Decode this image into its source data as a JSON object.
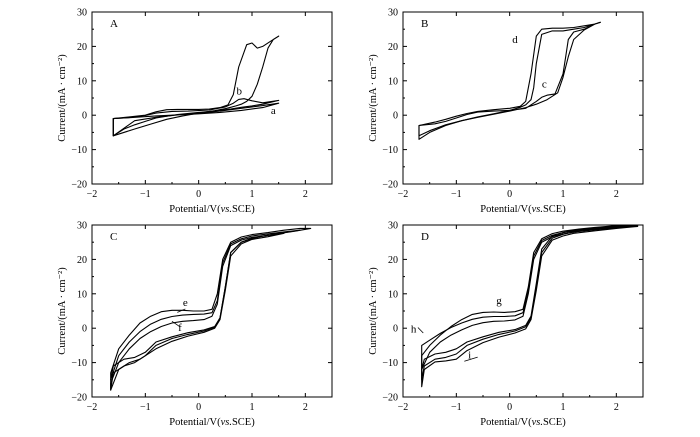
{
  "chart_data": [
    {
      "panel": "A",
      "type": "line",
      "xlabel_parts": [
        "Potential/V(",
        "vs.",
        "SCE)"
      ],
      "ylabel": "Current/(mA · cm⁻²)",
      "xlim": [
        -2,
        2.5
      ],
      "ylim": [
        -20,
        30
      ],
      "xticks": [
        -2,
        -1,
        0,
        1,
        2
      ],
      "yticks": [
        -20,
        -10,
        0,
        10,
        20,
        30
      ],
      "grid": false,
      "labels": [
        {
          "text": "a",
          "x": 1.4,
          "y": 0.3
        },
        {
          "text": "b",
          "x": 0.76,
          "y": 6
        }
      ],
      "series": [
        {
          "label": "a",
          "x": [
            -1.6,
            -1.2,
            -0.8,
            -0.4,
            0,
            0.4,
            0.8,
            1.2,
            1.5,
            1.2,
            0.8,
            0.4,
            0,
            -0.4,
            -0.8,
            -1.2,
            -1.6
          ],
          "y": [
            -1,
            -0.6,
            -0.2,
            0.1,
            0.4,
            0.8,
            1.4,
            2.2,
            3.5,
            2.8,
            2,
            1.2,
            0.6,
            0.1,
            -0.6,
            -1.6,
            -6
          ]
        },
        {
          "label": "b",
          "x": [
            -1.6,
            -1.3,
            -1,
            -0.8,
            -0.5,
            -0.2,
            0.2,
            0.5,
            0.65,
            0.75,
            0.85,
            1,
            1.2,
            1.5,
            1.2,
            1,
            0.8,
            0.6,
            0.3,
            0,
            -0.4,
            -0.8,
            -1,
            -1.2,
            -1.4,
            -1.6
          ],
          "y": [
            -1,
            -0.7,
            -0.1,
            0.6,
            1.1,
            1.2,
            1.5,
            2.4,
            3.5,
            4.6,
            4.8,
            4.2,
            3.6,
            4.3,
            3.2,
            2.7,
            2.3,
            1.8,
            1.2,
            0.8,
            0.2,
            -0.8,
            -1.8,
            -2.8,
            -4,
            -6
          ]
        },
        {
          "label": "",
          "x": [
            -1.6,
            -1.3,
            -1,
            -0.8,
            -0.6,
            -0.4,
            -0.2,
            0,
            0.2,
            0.4,
            0.55,
            0.65,
            0.75,
            0.9,
            1,
            1.1,
            1.2,
            1.35,
            1.5,
            1.4,
            1.3,
            1.2,
            1.1,
            1,
            0.9,
            0.8,
            0.7,
            0.6,
            0.5,
            0.3,
            0,
            -0.3,
            -0.6,
            -0.9,
            -1.2,
            -1.6
          ],
          "y": [
            -1,
            -0.5,
            0,
            1,
            1.6,
            1.7,
            1.7,
            1.7,
            1.8,
            2.2,
            3,
            6,
            14,
            20.5,
            21,
            19.5,
            20,
            21.5,
            23,
            22,
            19.5,
            14,
            9,
            5.5,
            4,
            3.2,
            2.7,
            2.3,
            1.9,
            1.3,
            0.6,
            -0.2,
            -1.2,
            -2.6,
            -4,
            -6
          ]
        }
      ]
    },
    {
      "panel": "B",
      "type": "line",
      "xlabel_parts": [
        "Potential/V(",
        "vs.",
        "SCE)"
      ],
      "ylabel": "Current/(mA · cm⁻²)",
      "xlim": [
        -2,
        2.5
      ],
      "ylim": [
        -20,
        30
      ],
      "xticks": [
        -2,
        -1,
        0,
        1,
        2
      ],
      "yticks": [
        -20,
        -10,
        0,
        10,
        20,
        30
      ],
      "grid": false,
      "labels": [
        {
          "text": "c",
          "x": 0.65,
          "y": 8
        },
        {
          "text": "d",
          "x": 0.1,
          "y": 21
        }
      ],
      "series": [
        {
          "label": "c",
          "x": [
            -1.7,
            -1.4,
            -1.2,
            -1,
            -0.8,
            -0.6,
            -0.3,
            0,
            0.3,
            0.5,
            0.6,
            0.7,
            0.85,
            1,
            1.05,
            1.1,
            1.2,
            1.4,
            1.6,
            1.7,
            1.6,
            1.4,
            1.2,
            1.1,
            1,
            0.9,
            0.7,
            0.5,
            0.3,
            0,
            -0.3,
            -0.6,
            -0.9,
            -1.2,
            -1.5,
            -1.7
          ],
          "y": [
            -3,
            -2.5,
            -1.8,
            -0.8,
            0.2,
            0.9,
            1.2,
            1.4,
            2,
            4,
            5.2,
            5.8,
            6.2,
            12,
            17,
            22,
            24.2,
            25,
            26.5,
            27,
            26.5,
            24.8,
            22,
            17,
            11,
            6.5,
            4.5,
            3.2,
            2.2,
            1.2,
            0.3,
            -0.6,
            -1.6,
            -2.8,
            -4.5,
            -6
          ]
        },
        {
          "label": "d",
          "x": [
            -1.7,
            -1.4,
            -1.2,
            -1,
            -0.8,
            -0.6,
            -0.3,
            0,
            0.2,
            0.3,
            0.4,
            0.5,
            0.6,
            0.8,
            1,
            1.2,
            1.4,
            1.6,
            1.7,
            1.6,
            1.4,
            1.2,
            1,
            0.8,
            0.6,
            0.5,
            0.45,
            0.4,
            0.3,
            0.2,
            0,
            -0.3,
            -0.6,
            -0.9,
            -1.2,
            -1.5,
            -1.7
          ],
          "y": [
            -3,
            -2,
            -1.2,
            -0.3,
            0.5,
            1.1,
            1.6,
            2,
            2.6,
            4,
            12,
            23,
            25,
            25.3,
            25.3,
            25.5,
            26,
            26.5,
            27,
            26.5,
            25.5,
            25,
            24.5,
            24.5,
            23.5,
            15,
            8,
            4.5,
            3,
            2.3,
            1.4,
            0.4,
            -0.5,
            -1.6,
            -3,
            -5,
            -7
          ]
        }
      ]
    },
    {
      "panel": "C",
      "type": "line",
      "xlabel_parts": [
        "Potential/V(",
        "vs.",
        "SCE)"
      ],
      "ylabel": "Current/(mA · cm⁻²)",
      "xlim": [
        -2,
        2.5
      ],
      "ylim": [
        -20,
        30
      ],
      "xticks": [
        -2,
        -1,
        0,
        1,
        2
      ],
      "yticks": [
        -20,
        -10,
        0,
        10,
        20,
        30
      ],
      "grid": false,
      "labels": [
        {
          "text": "e",
          "x": -0.25,
          "y": 6.5
        },
        {
          "text": "f",
          "x": -0.35,
          "y": -0.8
        }
      ],
      "series": [
        {
          "label": "e",
          "x": [
            -1.65,
            -1.5,
            -1.3,
            -1.1,
            -0.9,
            -0.7,
            -0.5,
            -0.3,
            -0.1,
            0.1,
            0.25,
            0.35,
            0.45,
            0.6,
            0.8,
            1,
            1.3,
            1.6,
            1.9,
            2.1,
            1.8,
            1.5,
            1.2,
            1,
            0.8,
            0.6,
            0.5,
            0.4,
            0.3,
            0.1,
            -0.2,
            -0.5,
            -0.8,
            -1,
            -1.2,
            -1.4,
            -1.6,
            -1.65
          ],
          "y": [
            -13,
            -6,
            -2,
            1.5,
            3.5,
            4.8,
            5.2,
            5.2,
            5,
            5,
            5.5,
            10,
            20,
            25,
            26.5,
            27.2,
            27.8,
            28.5,
            29,
            29,
            28.2,
            27.5,
            26.8,
            26,
            25,
            22,
            12,
            3,
            0.5,
            -0.5,
            -1.3,
            -2.5,
            -4,
            -7,
            -8.5,
            -9,
            -11,
            -15
          ]
        },
        {
          "label": "f",
          "x": [
            -1.65,
            -1.5,
            -1.3,
            -1.1,
            -0.9,
            -0.7,
            -0.5,
            -0.3,
            -0.1,
            0.1,
            0.25,
            0.35,
            0.45,
            0.6,
            0.8,
            1,
            1.3,
            1.6,
            1.9,
            1.6,
            1.3,
            1,
            0.8,
            0.6,
            0.5,
            0.4,
            0.3,
            0.1,
            -0.2,
            -0.5,
            -0.8,
            -1,
            -1.2,
            -1.4,
            -1.6,
            -1.65
          ],
          "y": [
            -15,
            -8,
            -4,
            -1,
            1.2,
            2.6,
            3.4,
            3.8,
            4,
            4.1,
            4.5,
            8,
            19,
            24.5,
            26,
            26.8,
            27.4,
            28,
            28.5,
            27.8,
            27,
            26.2,
            25,
            22,
            12,
            3,
            0.3,
            -0.8,
            -1.8,
            -3,
            -5,
            -8,
            -10,
            -11,
            -13,
            -18
          ]
        },
        {
          "label": "",
          "x": [
            -1.65,
            -1.5,
            -1.3,
            -1.1,
            -0.9,
            -0.7,
            -0.5,
            -0.3,
            -0.1,
            0.1,
            0.25,
            0.35,
            0.45,
            0.6,
            0.8,
            1,
            1.3,
            1.6,
            1.3,
            1,
            0.8,
            0.6,
            0.5,
            0.4,
            0.3,
            0.1,
            -0.2,
            -0.5,
            -0.8,
            -1.1,
            -1.3,
            -1.5,
            -1.65
          ],
          "y": [
            -16,
            -10,
            -6,
            -3,
            -1,
            0.5,
            1.5,
            2,
            2.2,
            2.5,
            3.5,
            7,
            18,
            24,
            25.6,
            26.4,
            27,
            27.6,
            26.6,
            25.8,
            24.5,
            21,
            11,
            2.5,
            0,
            -1.2,
            -2.3,
            -3.8,
            -6,
            -9,
            -10,
            -12,
            -18
          ]
        }
      ]
    },
    {
      "panel": "D",
      "type": "line",
      "xlabel_parts": [
        "Potential/V(",
        "vs.",
        "SCE)"
      ],
      "ylabel": "Current/(mA · cm⁻²)",
      "xlim": [
        -2,
        2.5
      ],
      "ylim": [
        -20,
        30
      ],
      "xticks": [
        -2,
        -1,
        0,
        1,
        2
      ],
      "yticks": [
        -20,
        -10,
        0,
        10,
        20,
        30
      ],
      "grid": false,
      "labels": [
        {
          "text": "g",
          "x": -0.2,
          "y": 7
        },
        {
          "text": "h",
          "x": -1.8,
          "y": -1.2
        },
        {
          "text": "i",
          "x": -0.75,
          "y": -8.8
        }
      ],
      "series": [
        {
          "label": "g",
          "x": [
            -1.65,
            -1.5,
            -1.3,
            -1.1,
            -0.9,
            -0.7,
            -0.5,
            -0.3,
            -0.1,
            0.1,
            0.25,
            0.35,
            0.45,
            0.6,
            0.8,
            1,
            1.3,
            1.6,
            2,
            2.4,
            2,
            1.6,
            1.2,
            1,
            0.8,
            0.6,
            0.5,
            0.4,
            0.3,
            0.1,
            -0.2,
            -0.5,
            -0.8,
            -1,
            -1.2,
            -1.4,
            -1.6,
            -1.65
          ],
          "y": [
            -8,
            -5,
            -2,
            0.5,
            2.5,
            4,
            4.6,
            4.7,
            4.6,
            4.8,
            5.5,
            12,
            22,
            26,
            27.5,
            28.2,
            28.8,
            29.3,
            29.8,
            30,
            29.5,
            29,
            28.4,
            27.8,
            26.8,
            23,
            13,
            3.5,
            0.8,
            -0.4,
            -1.2,
            -2.5,
            -4,
            -6,
            -7,
            -7.5,
            -9,
            -12
          ]
        },
        {
          "label": "h",
          "x": [
            -1.65,
            -1.5,
            -1.3,
            -1.1,
            -0.9,
            -0.7,
            -0.5,
            -0.3,
            -0.1,
            0.1,
            0.25,
            0.35,
            0.45,
            0.6,
            0.8,
            1,
            1.3,
            1.6,
            2,
            2.4,
            2,
            1.6,
            1.2,
            1,
            0.8,
            0.6,
            0.5,
            0.4,
            0.3,
            0.1,
            -0.2,
            -0.5,
            -0.8,
            -1,
            -1.2,
            -1.4,
            -1.6,
            -1.65
          ],
          "y": [
            -5,
            -3.5,
            -1.5,
            0.2,
            1.5,
            2.6,
            3.2,
            3.4,
            3.4,
            3.6,
            4.5,
            11,
            21,
            25.5,
            27,
            27.8,
            28.5,
            29,
            29.5,
            29.8,
            29.2,
            28.6,
            28,
            27.3,
            26.2,
            22,
            12,
            3,
            0.4,
            -0.8,
            -1.8,
            -3.2,
            -5,
            -7.5,
            -8.5,
            -9,
            -11,
            -15
          ]
        },
        {
          "label": "i",
          "x": [
            -1.65,
            -1.5,
            -1.3,
            -1.1,
            -0.9,
            -0.7,
            -0.5,
            -0.3,
            -0.1,
            0.1,
            0.25,
            0.35,
            0.45,
            0.6,
            0.8,
            1,
            1.3,
            1.6,
            2,
            2.4,
            2,
            1.6,
            1.2,
            1,
            0.8,
            0.6,
            0.5,
            0.4,
            0.3,
            0.1,
            -0.2,
            -0.5,
            -0.8,
            -1,
            -1.2,
            -1.4,
            -1.6,
            -1.65
          ],
          "y": [
            -12,
            -7,
            -4,
            -2,
            -0.5,
            0.8,
            1.6,
            2,
            2.1,
            2.4,
            3.5,
            10,
            20,
            25,
            26.6,
            27.4,
            28.2,
            28.8,
            29.3,
            29.6,
            29,
            28.3,
            27.6,
            26.8,
            25.6,
            21,
            11,
            2.5,
            -0.2,
            -1.4,
            -2.6,
            -4.2,
            -6.5,
            -9,
            -9.5,
            -9.8,
            -12,
            -17
          ]
        }
      ]
    }
  ]
}
